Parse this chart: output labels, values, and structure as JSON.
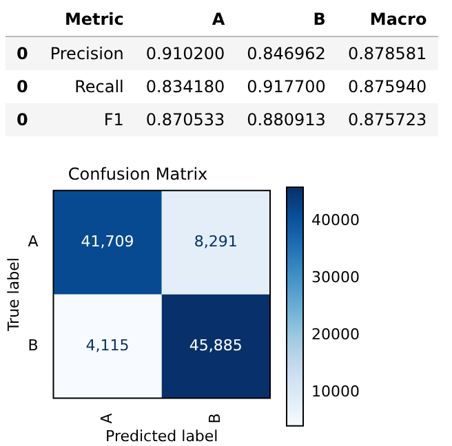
{
  "chart_data": [
    {
      "type": "other",
      "categories": [
        "Metric",
        "A",
        "B",
        "Macro"
      ],
      "y_categories": [
        "0",
        "0",
        "0"
      ],
      "cell_labels": [
        [
          "Precision",
          "0.910200",
          "0.846962",
          "0.878581"
        ],
        [
          "Recall",
          "0.834180",
          "0.917700",
          "0.875940"
        ],
        [
          "F1",
          "0.870533",
          "0.880913",
          "0.875723"
        ]
      ]
    },
    {
      "type": "heatmap",
      "title": "Confusion Matrix",
      "xlabel": "Predicted label",
      "ylabel": "True label",
      "categories": [
        "A",
        "B"
      ],
      "y_categories": [
        "A",
        "B"
      ],
      "cells": [
        [
          41709,
          8291
        ],
        [
          4115,
          45885
        ]
      ],
      "cell_labels": [
        [
          "41,709",
          "8,291"
        ],
        [
          "4,115",
          "45,885"
        ]
      ],
      "clim": [
        4115,
        45885
      ],
      "cticks": [
        10000,
        20000,
        30000,
        40000
      ]
    }
  ]
}
